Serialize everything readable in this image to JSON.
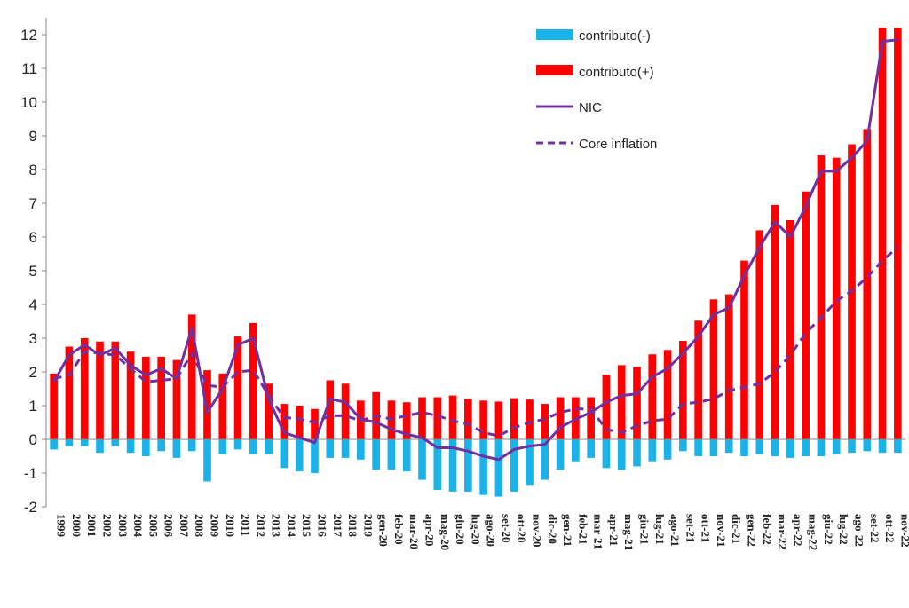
{
  "chart_data": {
    "type": "bar",
    "title": "",
    "xlabel": "",
    "ylabel": "",
    "ylim": [
      -2,
      12.2
    ],
    "yticks": [
      -2,
      -1,
      0,
      1,
      2,
      3,
      4,
      5,
      6,
      7,
      8,
      9,
      10,
      11,
      12
    ],
    "colors": {
      "neg": "#1ab2e8",
      "pos": "#ff0000",
      "nic": "#7030a0",
      "core": "#7030a0"
    },
    "legend": {
      "position": "top-right",
      "items": [
        "contributo(-)",
        "contributo(+)",
        "NIC",
        "Core inflation"
      ]
    },
    "categories": [
      "1999",
      "2000",
      "2001",
      "2002",
      "2003",
      "2004",
      "2005",
      "2006",
      "2007",
      "2008",
      "2009",
      "2010",
      "2011",
      "2012",
      "2013",
      "2014",
      "2015",
      "2016",
      "2017",
      "2018",
      "2019",
      "gen-20",
      "feb-20",
      "mar-20",
      "apr-20",
      "mag-20",
      "giu-20",
      "lug-20",
      "ago-20",
      "set-20",
      "ott-20",
      "nov-20",
      "dic-20",
      "gen-21",
      "feb-21",
      "mar-21",
      "apr-21",
      "mag-21",
      "giu-21",
      "lug-21",
      "ago-21",
      "set-21",
      "ott-21",
      "nov-21",
      "dic-21",
      "gen-22",
      "feb-22",
      "mar-22",
      "apr-22",
      "mag-22",
      "giu-22",
      "lug-22",
      "ago-22",
      "set-22",
      "ott-22",
      "nov-22"
    ],
    "series": [
      {
        "name": "contributo(-)",
        "kind": "bar",
        "values": [
          -0.3,
          -0.2,
          -0.2,
          -0.4,
          -0.2,
          -0.4,
          -0.5,
          -0.35,
          -0.55,
          -0.35,
          -1.25,
          -0.45,
          -0.3,
          -0.45,
          -0.45,
          -0.85,
          -0.95,
          -1.0,
          -0.55,
          -0.55,
          -0.6,
          -0.9,
          -0.9,
          -0.95,
          -1.2,
          -1.5,
          -1.55,
          -1.55,
          -1.65,
          -1.7,
          -1.55,
          -1.35,
          -1.2,
          -0.9,
          -0.65,
          -0.55,
          -0.85,
          -0.9,
          -0.8,
          -0.65,
          -0.6,
          -0.35,
          -0.5,
          -0.5,
          -0.4,
          -0.5,
          -0.45,
          -0.5,
          -0.55,
          -0.5,
          -0.5,
          -0.45,
          -0.4,
          -0.35,
          -0.4,
          -0.4
        ]
      },
      {
        "name": "contributo(+)",
        "kind": "bar",
        "values": [
          1.95,
          2.75,
          3.0,
          2.9,
          2.9,
          2.6,
          2.45,
          2.45,
          2.35,
          3.7,
          2.05,
          1.95,
          3.05,
          3.45,
          1.65,
          1.05,
          1.0,
          0.9,
          1.75,
          1.65,
          1.15,
          1.4,
          1.15,
          1.1,
          1.25,
          1.25,
          1.3,
          1.2,
          1.15,
          1.12,
          1.22,
          1.18,
          1.05,
          1.25,
          1.25,
          1.25,
          1.92,
          2.2,
          2.15,
          2.52,
          2.65,
          2.92,
          3.52,
          4.15,
          4.3,
          5.3,
          6.2,
          6.95,
          6.5,
          7.35,
          8.42,
          8.35,
          8.75,
          9.2,
          12.2,
          12.2
        ]
      },
      {
        "name": "NIC",
        "kind": "line",
        "values": [
          1.7,
          2.5,
          2.8,
          2.5,
          2.7,
          2.2,
          1.9,
          2.1,
          1.8,
          3.3,
          0.8,
          1.5,
          2.8,
          3.0,
          1.2,
          0.2,
          0.05,
          -0.1,
          1.2,
          1.1,
          0.6,
          0.5,
          0.3,
          0.15,
          0.05,
          -0.25,
          -0.25,
          -0.35,
          -0.5,
          -0.6,
          -0.3,
          -0.2,
          -0.15,
          0.35,
          0.6,
          0.8,
          1.1,
          1.3,
          1.35,
          1.85,
          2.1,
          2.55,
          3.05,
          3.7,
          3.9,
          4.85,
          5.7,
          6.45,
          6.0,
          6.9,
          7.95,
          7.95,
          8.35,
          8.85,
          11.8,
          11.85
        ]
      },
      {
        "name": "Core inflation",
        "kind": "line",
        "values": [
          1.8,
          1.9,
          2.6,
          2.55,
          2.5,
          2.1,
          1.7,
          1.75,
          1.8,
          2.55,
          1.6,
          1.55,
          2.0,
          2.05,
          1.3,
          0.65,
          0.6,
          0.5,
          0.7,
          0.7,
          0.55,
          0.7,
          0.6,
          0.7,
          0.8,
          0.7,
          0.55,
          0.45,
          0.2,
          0.1,
          0.35,
          0.5,
          0.6,
          0.8,
          0.9,
          0.9,
          0.3,
          0.2,
          0.4,
          0.55,
          0.6,
          1.05,
          1.1,
          1.2,
          1.45,
          1.55,
          1.65,
          2.0,
          2.5,
          3.15,
          3.6,
          4.1,
          4.4,
          4.8,
          5.3,
          5.7
        ]
      }
    ]
  }
}
